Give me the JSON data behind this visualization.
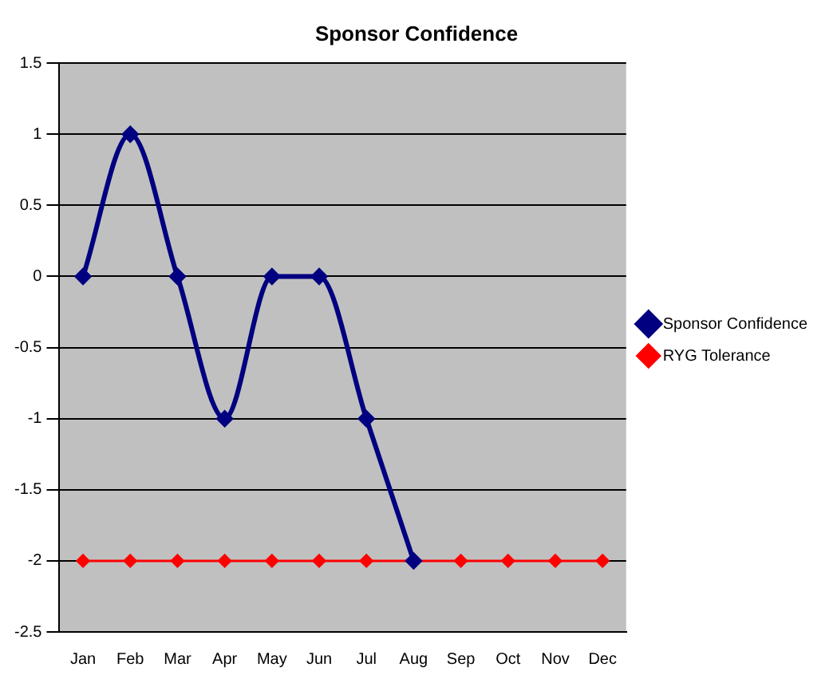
{
  "chart_data": {
    "type": "line",
    "title": "Sponsor Confidence",
    "categories": [
      "Jan",
      "Feb",
      "Mar",
      "Apr",
      "May",
      "Jun",
      "Jul",
      "Aug",
      "Sep",
      "Oct",
      "Nov",
      "Dec"
    ],
    "series": [
      {
        "name": "Sponsor Confidence",
        "color": "#000080",
        "values": [
          0,
          1,
          0,
          -1,
          0,
          0,
          -1,
          -2,
          null,
          null,
          null,
          null
        ]
      },
      {
        "name": "RYG Tolerance",
        "color": "#ff0000",
        "values": [
          -2,
          -2,
          -2,
          -2,
          -2,
          -2,
          -2,
          -2,
          -2,
          -2,
          -2,
          -2
        ]
      }
    ],
    "ylim": [
      -2.5,
      1.5
    ],
    "yticks": [
      -2.5,
      -2,
      -1.5,
      -1,
      -0.5,
      0,
      0.5,
      1,
      1.5
    ],
    "grid": "y",
    "legend": "right",
    "marker": "diamond",
    "line_style": "solid"
  }
}
